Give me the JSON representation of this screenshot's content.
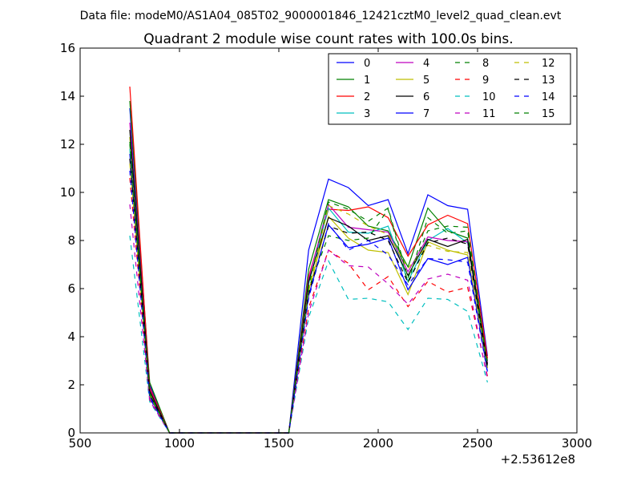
{
  "figure": {
    "suptitle": "Data file: modeM0/AS1A04_085T02_9000001846_12421cztM0_level2_quad_clean.evt"
  },
  "chart_data": {
    "type": "line",
    "title": "Quadrant 2 module wise count rates with 100.0s bins.",
    "xlabel": "",
    "ylabel": "",
    "xlim": [
      500,
      3000
    ],
    "ylim": [
      0,
      16
    ],
    "x_offset_label": "+2.53612e8",
    "xticks": [
      500,
      1000,
      1500,
      2000,
      2500,
      3000
    ],
    "yticks": [
      0,
      2,
      4,
      6,
      8,
      10,
      12,
      14,
      16
    ],
    "grid": false,
    "legend": {
      "placement": "top-right",
      "columns": 4
    },
    "x": [
      750,
      850,
      950,
      1050,
      1150,
      1250,
      1350,
      1450,
      1550,
      1650,
      1750,
      1850,
      1950,
      2050,
      2150,
      2250,
      2350,
      2450,
      2550
    ],
    "series": [
      {
        "name": "0",
        "color": "#0000ff",
        "dash": "solid",
        "values": [
          13.5,
          2.0,
          0,
          0,
          0,
          0,
          0,
          0,
          0,
          7.6,
          10.55,
          10.2,
          9.45,
          9.7,
          7.45,
          9.9,
          9.45,
          9.3,
          3.2
        ]
      },
      {
        "name": "1",
        "color": "#008000",
        "dash": "solid",
        "values": [
          13.8,
          2.1,
          0,
          0,
          0,
          0,
          0,
          0,
          0,
          6.8,
          9.7,
          9.4,
          8.6,
          8.4,
          6.9,
          9.35,
          8.4,
          8.1,
          3.0
        ]
      },
      {
        "name": "2",
        "color": "#ff0000",
        "dash": "solid",
        "values": [
          14.4,
          1.9,
          0,
          0,
          0,
          0,
          0,
          0,
          0,
          6.5,
          9.3,
          9.25,
          9.4,
          8.95,
          7.35,
          8.65,
          9.05,
          8.7,
          3.1
        ]
      },
      {
        "name": "3",
        "color": "#00bfbf",
        "dash": "solid",
        "values": [
          11.8,
          1.6,
          0,
          0,
          0,
          0,
          0,
          0,
          0,
          6.2,
          9.35,
          8.35,
          8.3,
          8.6,
          6.3,
          8.0,
          8.5,
          7.9,
          2.8
        ]
      },
      {
        "name": "4",
        "color": "#bf00bf",
        "dash": "solid",
        "values": [
          12.9,
          1.8,
          0,
          0,
          0,
          0,
          0,
          0,
          0,
          6.4,
          9.5,
          8.55,
          8.45,
          8.35,
          6.7,
          8.15,
          8.0,
          7.95,
          2.9
        ]
      },
      {
        "name": "5",
        "color": "#bfbf00",
        "dash": "solid",
        "values": [
          12.3,
          1.7,
          0,
          0,
          0,
          0,
          0,
          0,
          0,
          5.9,
          9.0,
          8.1,
          7.6,
          7.5,
          5.75,
          7.95,
          7.6,
          7.4,
          2.7
        ]
      },
      {
        "name": "6",
        "color": "#000000",
        "dash": "solid",
        "values": [
          12.6,
          1.75,
          0,
          0,
          0,
          0,
          0,
          0,
          0,
          6.3,
          8.95,
          8.6,
          8.0,
          8.2,
          6.55,
          8.05,
          7.75,
          8.05,
          2.85
        ]
      },
      {
        "name": "7",
        "color": "#0000ff",
        "dash": "solid",
        "values": [
          11.6,
          1.5,
          0,
          0,
          0,
          0,
          0,
          0,
          0,
          5.7,
          8.65,
          7.7,
          7.85,
          8.1,
          5.95,
          7.25,
          7.0,
          7.3,
          2.55
        ]
      },
      {
        "name": "8",
        "color": "#008000",
        "dash": "dashed",
        "values": [
          12.1,
          1.65,
          0,
          0,
          0,
          0,
          0,
          0,
          0,
          6.0,
          8.2,
          8.0,
          8.1,
          9.3,
          6.25,
          8.95,
          8.3,
          8.4,
          2.75
        ]
      },
      {
        "name": "9",
        "color": "#ff0000",
        "dash": "dashed",
        "values": [
          10.6,
          1.4,
          0,
          0,
          0,
          0,
          0,
          0,
          0,
          5.2,
          7.6,
          7.05,
          5.95,
          6.5,
          5.25,
          6.3,
          5.85,
          6.05,
          2.35
        ]
      },
      {
        "name": "10",
        "color": "#00bfbf",
        "dash": "dashed",
        "values": [
          8.2,
          1.3,
          0,
          0,
          0,
          0,
          0,
          0,
          0,
          4.8,
          7.15,
          5.55,
          5.6,
          5.45,
          4.3,
          5.6,
          5.55,
          5.05,
          2.1
        ]
      },
      {
        "name": "11",
        "color": "#bf00bf",
        "dash": "dashed",
        "values": [
          9.5,
          1.35,
          0,
          0,
          0,
          0,
          0,
          0,
          0,
          5.0,
          7.6,
          6.95,
          6.9,
          6.2,
          5.35,
          6.4,
          6.6,
          6.35,
          2.25
        ]
      },
      {
        "name": "12",
        "color": "#bfbf00",
        "dash": "dashed",
        "values": [
          11.2,
          1.55,
          0,
          0,
          0,
          0,
          0,
          0,
          0,
          5.9,
          9.45,
          9.1,
          8.6,
          8.25,
          6.85,
          7.8,
          7.55,
          7.5,
          2.65
        ]
      },
      {
        "name": "13",
        "color": "#000000",
        "dash": "dashed",
        "values": [
          11.4,
          1.6,
          0,
          0,
          0,
          0,
          0,
          0,
          0,
          5.8,
          8.6,
          8.3,
          8.35,
          8.0,
          6.25,
          7.9,
          8.1,
          7.85,
          2.7
        ]
      },
      {
        "name": "14",
        "color": "#0000ff",
        "dash": "dashed",
        "values": [
          10.9,
          1.45,
          0,
          0,
          0,
          0,
          0,
          0,
          0,
          5.6,
          8.7,
          7.6,
          8.0,
          7.4,
          6.15,
          7.25,
          7.2,
          7.1,
          2.5
        ]
      },
      {
        "name": "15",
        "color": "#008000",
        "dash": "dashed",
        "values": [
          12.0,
          1.6,
          0,
          0,
          0,
          0,
          0,
          0,
          0,
          6.1,
          9.6,
          9.3,
          8.8,
          9.35,
          6.45,
          8.4,
          8.6,
          8.55,
          2.8
        ]
      }
    ]
  }
}
